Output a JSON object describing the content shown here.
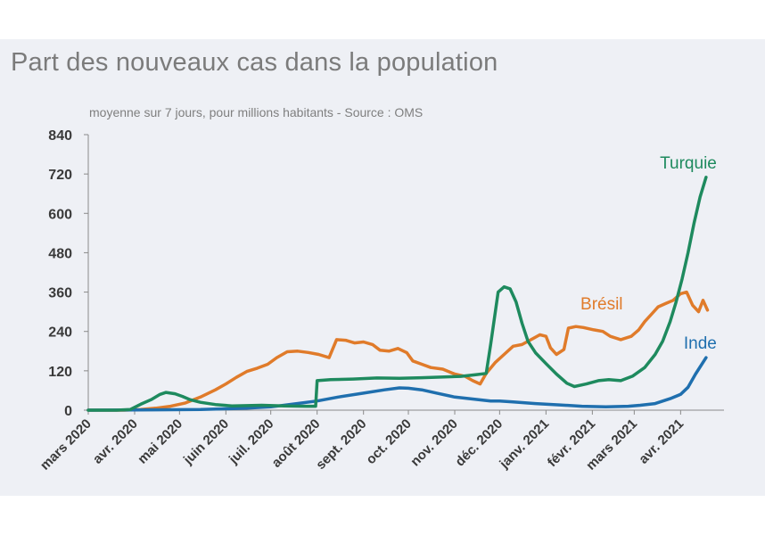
{
  "title": "Part des nouveaux cas dans la population",
  "subtitle": "moyenne sur 7 jours, pour millions habitants - Source : OMS",
  "colors": {
    "panel": "#eef0f5",
    "axis": "#8a8a8a",
    "Turquie": "#1e8a5e",
    "Brésil": "#e07b2a",
    "Inde": "#1f6fae"
  },
  "chart_data": {
    "type": "line",
    "title": "Part des nouveaux cas dans la population",
    "subtitle": "moyenne sur 7 jours, pour millions habitants - Source : OMS",
    "ylim": [
      0,
      840
    ],
    "yticks": [
      0,
      120,
      240,
      360,
      480,
      600,
      720,
      840
    ],
    "xlim": [
      "2020-03-01",
      "2021-04-30"
    ],
    "xticks": [
      {
        "date": "2020-03-01",
        "label": "mars 2020"
      },
      {
        "date": "2020-04-01",
        "label": "avr. 2020"
      },
      {
        "date": "2020-05-01",
        "label": "mai 2020"
      },
      {
        "date": "2020-06-01",
        "label": "juin 2020"
      },
      {
        "date": "2020-07-01",
        "label": "juil. 2020"
      },
      {
        "date": "2020-08-01",
        "label": "août 2020"
      },
      {
        "date": "2020-09-01",
        "label": "sept. 2020"
      },
      {
        "date": "2020-10-01",
        "label": "oct. 2020"
      },
      {
        "date": "2020-11-01",
        "label": "nov. 2020"
      },
      {
        "date": "2020-12-01",
        "label": "déc. 2020"
      },
      {
        "date": "2021-01-01",
        "label": "janv. 2021"
      },
      {
        "date": "2021-02-01",
        "label": "févr. 2021"
      },
      {
        "date": "2021-03-01",
        "label": "mars 2021"
      },
      {
        "date": "2021-04-01",
        "label": "avr. 2021"
      }
    ],
    "grid": false,
    "series": [
      {
        "name": "Turquie",
        "label_position": "above line end",
        "points": [
          [
            "2020-03-01",
            0
          ],
          [
            "2020-03-20",
            0
          ],
          [
            "2020-03-29",
            2
          ],
          [
            "2020-04-05",
            18
          ],
          [
            "2020-04-12",
            32
          ],
          [
            "2020-04-18",
            48
          ],
          [
            "2020-04-22",
            54
          ],
          [
            "2020-04-28",
            50
          ],
          [
            "2020-05-03",
            42
          ],
          [
            "2020-05-08",
            32
          ],
          [
            "2020-05-15",
            24
          ],
          [
            "2020-05-25",
            17
          ],
          [
            "2020-06-05",
            13
          ],
          [
            "2020-06-15",
            14
          ],
          [
            "2020-06-25",
            15
          ],
          [
            "2020-07-10",
            13
          ],
          [
            "2020-07-25",
            12
          ],
          [
            "2020-07-31",
            12
          ],
          [
            "2020-08-01",
            90
          ],
          [
            "2020-08-10",
            93
          ],
          [
            "2020-08-25",
            95
          ],
          [
            "2020-09-10",
            98
          ],
          [
            "2020-09-25",
            97
          ],
          [
            "2020-10-10",
            99
          ],
          [
            "2020-10-25",
            101
          ],
          [
            "2020-11-05",
            103
          ],
          [
            "2020-11-15",
            108
          ],
          [
            "2020-11-22",
            112
          ],
          [
            "2020-11-25",
            200
          ],
          [
            "2020-11-30",
            360
          ],
          [
            "2020-12-04",
            376
          ],
          [
            "2020-12-08",
            370
          ],
          [
            "2020-12-12",
            330
          ],
          [
            "2020-12-16",
            265
          ],
          [
            "2020-12-20",
            210
          ],
          [
            "2020-12-25",
            175
          ],
          [
            "2021-01-01",
            142
          ],
          [
            "2021-01-08",
            110
          ],
          [
            "2021-01-15",
            82
          ],
          [
            "2021-01-20",
            72
          ],
          [
            "2021-01-28",
            80
          ],
          [
            "2021-02-05",
            90
          ],
          [
            "2021-02-12",
            93
          ],
          [
            "2021-02-20",
            90
          ],
          [
            "2021-02-28",
            104
          ],
          [
            "2021-03-08",
            130
          ],
          [
            "2021-03-15",
            170
          ],
          [
            "2021-03-20",
            210
          ],
          [
            "2021-03-25",
            270
          ],
          [
            "2021-03-29",
            330
          ],
          [
            "2021-04-02",
            400
          ],
          [
            "2021-04-06",
            480
          ],
          [
            "2021-04-10",
            570
          ],
          [
            "2021-04-14",
            650
          ],
          [
            "2021-04-18",
            710
          ]
        ]
      },
      {
        "name": "Brésil",
        "label_position": "left of line end",
        "points": [
          [
            "2020-03-01",
            0
          ],
          [
            "2020-03-25",
            0
          ],
          [
            "2020-04-05",
            2
          ],
          [
            "2020-04-15",
            6
          ],
          [
            "2020-04-25",
            12
          ],
          [
            "2020-05-05",
            22
          ],
          [
            "2020-05-15",
            40
          ],
          [
            "2020-05-25",
            62
          ],
          [
            "2020-06-01",
            80
          ],
          [
            "2020-06-08",
            100
          ],
          [
            "2020-06-15",
            118
          ],
          [
            "2020-06-22",
            128
          ],
          [
            "2020-06-29",
            140
          ],
          [
            "2020-07-05",
            160
          ],
          [
            "2020-07-12",
            178
          ],
          [
            "2020-07-19",
            180
          ],
          [
            "2020-07-26",
            176
          ],
          [
            "2020-08-02",
            170
          ],
          [
            "2020-08-09",
            160
          ],
          [
            "2020-08-14",
            215
          ],
          [
            "2020-08-20",
            213
          ],
          [
            "2020-08-26",
            205
          ],
          [
            "2020-09-01",
            208
          ],
          [
            "2020-09-07",
            200
          ],
          [
            "2020-09-12",
            183
          ],
          [
            "2020-09-18",
            180
          ],
          [
            "2020-09-24",
            188
          ],
          [
            "2020-09-30",
            175
          ],
          [
            "2020-10-04",
            150
          ],
          [
            "2020-10-10",
            140
          ],
          [
            "2020-10-16",
            130
          ],
          [
            "2020-10-24",
            125
          ],
          [
            "2020-11-01",
            110
          ],
          [
            "2020-11-08",
            103
          ],
          [
            "2020-11-13",
            90
          ],
          [
            "2020-11-18",
            80
          ],
          [
            "2020-11-22",
            112
          ],
          [
            "2020-11-28",
            145
          ],
          [
            "2020-12-04",
            170
          ],
          [
            "2020-12-10",
            195
          ],
          [
            "2020-12-16",
            200
          ],
          [
            "2020-12-22",
            215
          ],
          [
            "2020-12-28",
            230
          ],
          [
            "2021-01-01",
            225
          ],
          [
            "2021-01-04",
            190
          ],
          [
            "2021-01-08",
            170
          ],
          [
            "2021-01-13",
            185
          ],
          [
            "2021-01-16",
            250
          ],
          [
            "2021-01-21",
            255
          ],
          [
            "2021-01-26",
            252
          ],
          [
            "2021-02-02",
            245
          ],
          [
            "2021-02-08",
            240
          ],
          [
            "2021-02-13",
            225
          ],
          [
            "2021-02-20",
            215
          ],
          [
            "2021-02-27",
            225
          ],
          [
            "2021-03-04",
            245
          ],
          [
            "2021-03-08",
            270
          ],
          [
            "2021-03-13",
            295
          ],
          [
            "2021-03-17",
            315
          ],
          [
            "2021-03-22",
            325
          ],
          [
            "2021-03-27",
            335
          ],
          [
            "2021-04-01",
            355
          ],
          [
            "2021-04-05",
            360
          ],
          [
            "2021-04-09",
            320
          ],
          [
            "2021-04-13",
            300
          ],
          [
            "2021-04-16",
            335
          ],
          [
            "2021-04-19",
            305
          ]
        ]
      },
      {
        "name": "Inde",
        "label_position": "above line end",
        "points": [
          [
            "2020-03-01",
            0
          ],
          [
            "2020-04-15",
            1
          ],
          [
            "2020-05-15",
            2
          ],
          [
            "2020-06-15",
            6
          ],
          [
            "2020-07-01",
            10
          ],
          [
            "2020-07-15",
            18
          ],
          [
            "2020-08-01",
            28
          ],
          [
            "2020-08-15",
            40
          ],
          [
            "2020-09-01",
            52
          ],
          [
            "2020-09-15",
            62
          ],
          [
            "2020-09-25",
            68
          ],
          [
            "2020-10-01",
            67
          ],
          [
            "2020-10-10",
            62
          ],
          [
            "2020-10-20",
            52
          ],
          [
            "2020-11-01",
            40
          ],
          [
            "2020-11-15",
            33
          ],
          [
            "2020-11-25",
            28
          ],
          [
            "2020-12-01",
            28
          ],
          [
            "2020-12-10",
            25
          ],
          [
            "2020-12-25",
            20
          ],
          [
            "2021-01-10",
            16
          ],
          [
            "2021-01-25",
            12
          ],
          [
            "2021-02-10",
            10
          ],
          [
            "2021-02-25",
            12
          ],
          [
            "2021-03-05",
            15
          ],
          [
            "2021-03-15",
            20
          ],
          [
            "2021-03-25",
            35
          ],
          [
            "2021-04-01",
            48
          ],
          [
            "2021-04-06",
            70
          ],
          [
            "2021-04-11",
            110
          ],
          [
            "2021-04-18",
            160
          ]
        ]
      }
    ]
  }
}
